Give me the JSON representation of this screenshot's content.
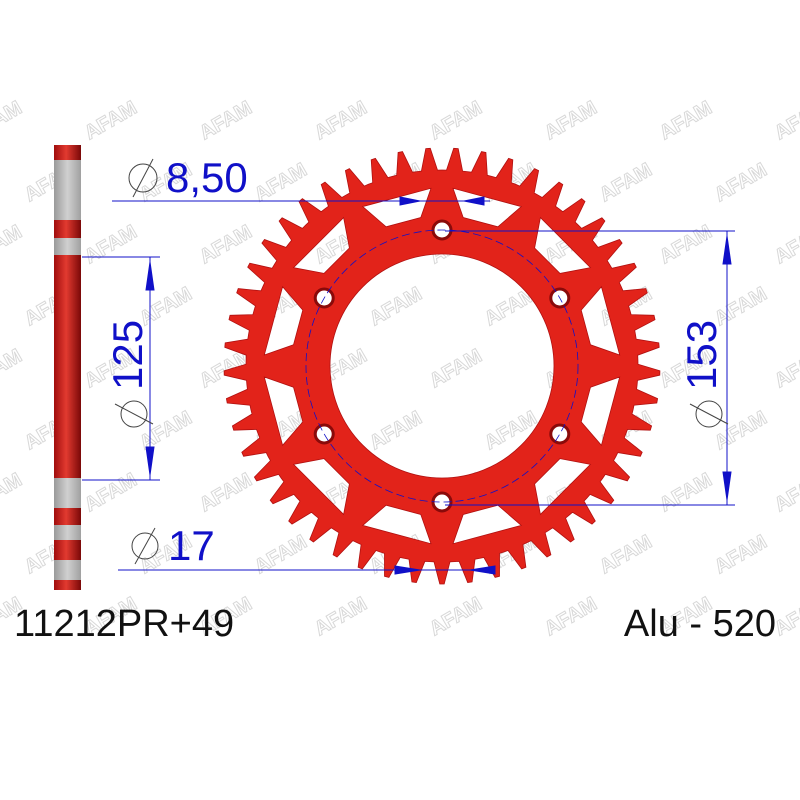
{
  "watermark": "AFAM",
  "part_number": "11212PR+49",
  "material": "Alu - 520",
  "dimensions": {
    "bolt_hole": "8,50",
    "hub_diameter": "125",
    "bolt_circle": "153",
    "center_bore": "17"
  },
  "sprocket": {
    "teeth": 49,
    "bolts": 6
  },
  "colors": {
    "sprocket": "#e2231a",
    "dimension": "#1010c8",
    "watermark": "#d8d8d8"
  }
}
